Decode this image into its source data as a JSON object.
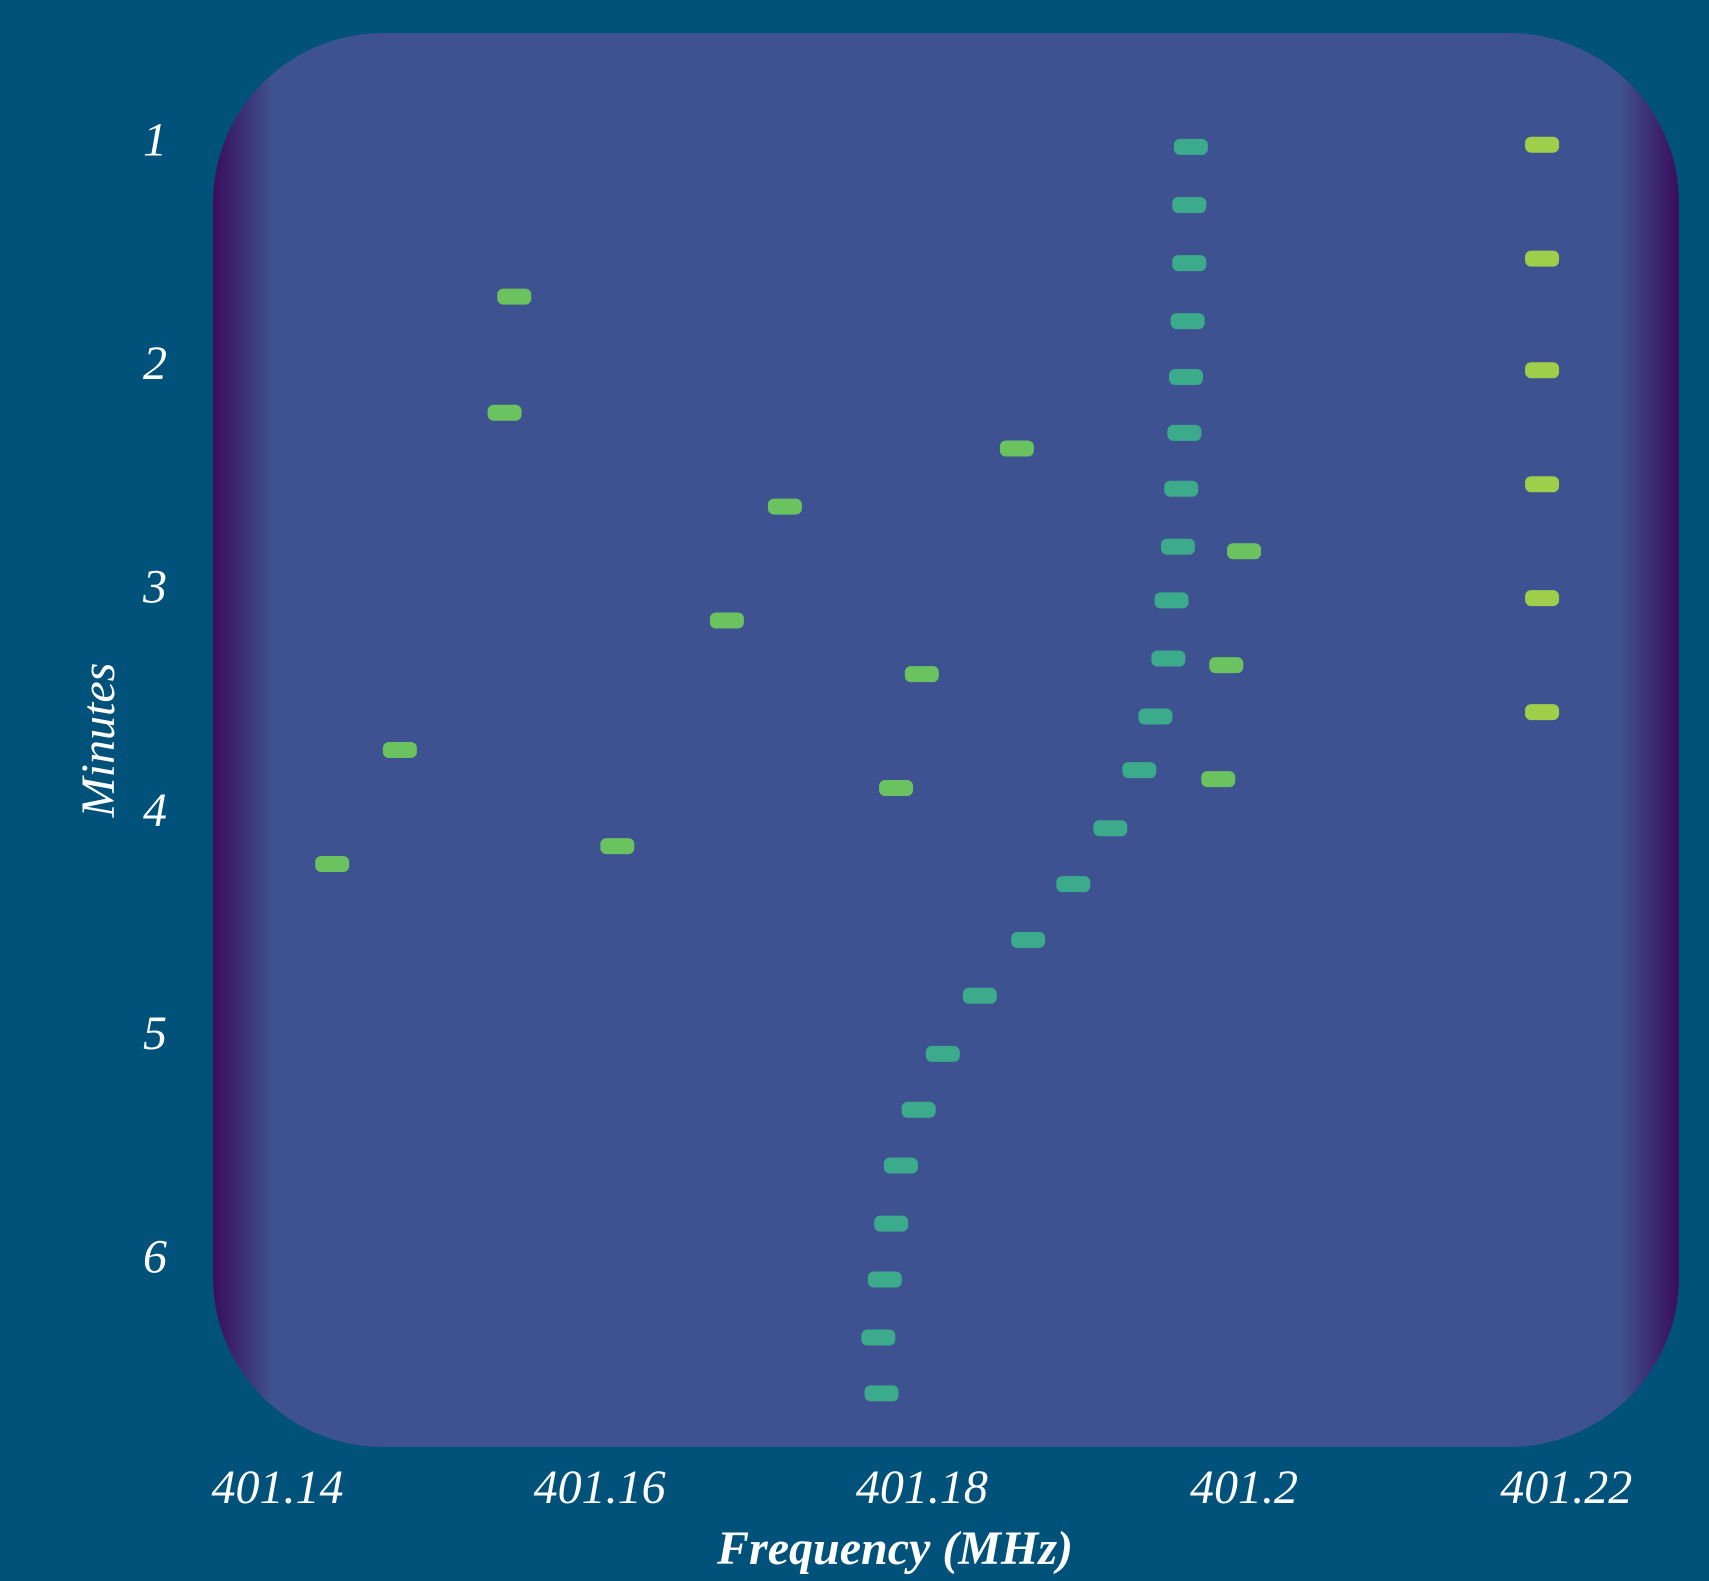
{
  "chart_data": {
    "type": "spectrogram",
    "xlabel": "Frequency (MHz)",
    "ylabel": "Minutes",
    "xlim": [
      401.136,
      401.227
    ],
    "ylim": [
      0.5,
      6.83
    ],
    "y_inverted": true,
    "xticks": [
      401.14,
      401.16,
      401.18,
      401.2,
      401.22
    ],
    "yticks": [
      1,
      2,
      3,
      4,
      5,
      6
    ],
    "background_color": "#3e5190",
    "edge_color": "#3a0d5a",
    "series": [
      {
        "color": "#3bb58c",
        "x": [
          401.1775,
          401.1773,
          401.1777,
          401.1781,
          401.1787,
          401.1798,
          401.1813,
          401.1836,
          401.1866,
          401.1894,
          401.1917,
          401.1935,
          401.1945,
          401.1953,
          401.1955,
          401.1959,
          401.1961,
          401.1963,
          401.1964,
          401.1965,
          401.1966,
          401.1966,
          401.1967
        ],
        "values": [
          6.59,
          6.34,
          6.08,
          5.83,
          5.57,
          5.32,
          5.07,
          4.81,
          4.56,
          4.31,
          4.06,
          3.8,
          3.56,
          3.3,
          3.04,
          2.8,
          2.54,
          2.29,
          2.04,
          1.79,
          1.53,
          1.27,
          1.01
        ]
      },
      {
        "color": "#a8db42",
        "x": [
          401.2185,
          401.2185,
          401.2185,
          401.2185,
          401.2185,
          401.2185
        ],
        "values": [
          1.0,
          1.51,
          2.01,
          2.52,
          3.03,
          3.54
        ]
      },
      {
        "color": "#6fcf5a",
        "x": [
          401.1611,
          401.1784,
          401.18,
          401.1989,
          401.1984,
          401.2,
          401.1434,
          401.1476,
          401.1859,
          401.1715,
          401.1679,
          401.1541,
          401.1547
        ],
        "values": [
          4.14,
          3.88,
          3.37,
          3.33,
          3.84,
          2.82,
          4.22,
          3.71,
          2.36,
          2.62,
          3.13,
          2.2,
          1.68
        ]
      }
    ]
  }
}
